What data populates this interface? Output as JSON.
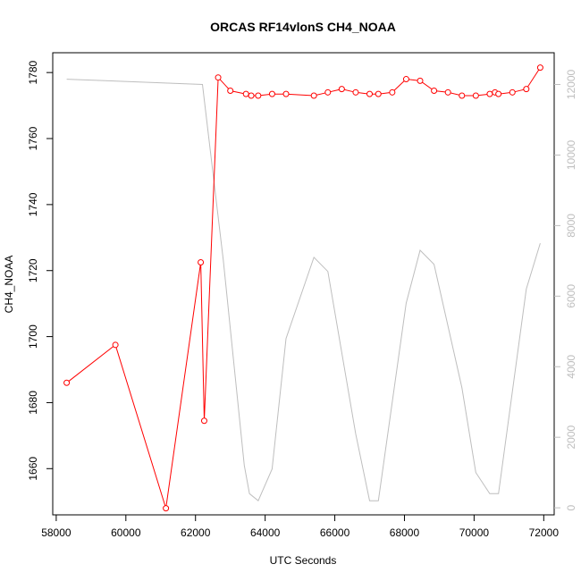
{
  "chart_data": {
    "type": "line",
    "title": "ORCAS RF14vlonS CH4_NOAA",
    "xlabel": "UTC Seconds",
    "ylabel": "CH4_NOAA",
    "xlim": [
      57900,
      72300
    ],
    "ylim": [
      1646,
      1786
    ],
    "y2lim": [
      -200,
      12900
    ],
    "x_ticks": [
      58000,
      60000,
      62000,
      64000,
      66000,
      68000,
      70000,
      72000
    ],
    "y_ticks": [
      1660,
      1680,
      1700,
      1720,
      1740,
      1760,
      1780
    ],
    "y2_ticks": [
      0,
      2000,
      4000,
      6000,
      8000,
      10000,
      12000
    ],
    "grid": false,
    "series": [
      {
        "axis": "left",
        "style": "line+points",
        "color": "#ff0000",
        "x": [
          58300,
          59700,
          61150,
          62150,
          62250,
          62650,
          63000,
          63450,
          63600,
          63800,
          64200,
          64600,
          65400,
          65800,
          66200,
          66600,
          67000,
          67250,
          67650,
          68050,
          68450,
          68850,
          69250,
          69650,
          70050,
          70450,
          70600,
          70700,
          71100,
          71500,
          71900
        ],
        "y": [
          1686,
          1697.5,
          1648,
          1722.5,
          1674.5,
          1778.5,
          1774.5,
          1773.5,
          1773,
          1773,
          1773.5,
          1773.5,
          1773,
          1774,
          1775,
          1774,
          1773.5,
          1773.5,
          1774,
          1778,
          1777.5,
          1774.5,
          1774,
          1773,
          1773,
          1773.5,
          1774,
          1773.5,
          1774,
          1775,
          1781.5
        ]
      },
      {
        "axis": "right",
        "style": "line",
        "color": "#bebebe",
        "x": [
          58300,
          62200,
          62800,
          63400,
          63550,
          63800,
          64200,
          64600,
          65400,
          65800,
          66600,
          67000,
          67250,
          68050,
          68450,
          68850,
          69650,
          70050,
          70450,
          70700,
          71500,
          71900
        ],
        "y": [
          12150,
          12000,
          7000,
          1200,
          400,
          200,
          1100,
          4800,
          7100,
          6700,
          2100,
          200,
          200,
          5800,
          7300,
          6900,
          3400,
          1000,
          400,
          400,
          6200,
          7500
        ]
      }
    ]
  }
}
